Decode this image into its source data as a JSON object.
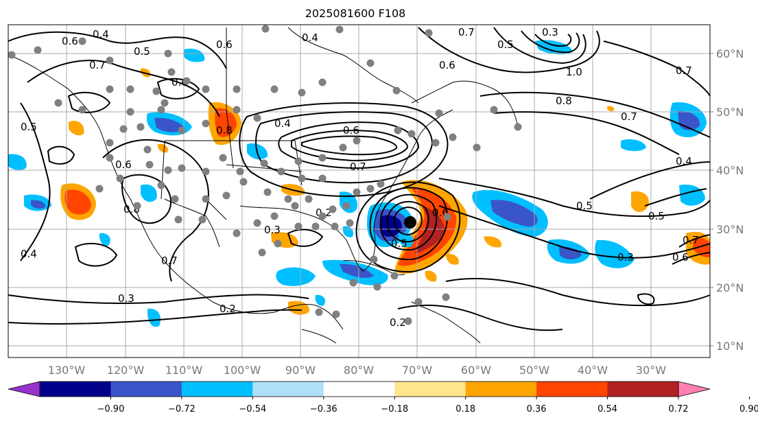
{
  "title": "2025081600 F108",
  "lat_labels": [
    "60°N",
    "50°N",
    "40°N",
    "30°N",
    "20°N",
    "10°N"
  ],
  "lon_labels": [
    "130°W",
    "120°W",
    "110°W",
    "100°W",
    "90°W",
    "80°W",
    "70°W",
    "60°W",
    "50°W",
    "40°W",
    "30°W"
  ],
  "colorbar": {
    "tick_labels": [
      "−0.90",
      "−0.72",
      "−0.54",
      "−0.36",
      "−0.18",
      "0.18",
      "0.36",
      "0.54",
      "0.72",
      "0.90"
    ],
    "colors": [
      "#9932cc",
      "#00008b",
      "#3a55c8",
      "#00bfff",
      "#b0e0f8",
      "#ffffff",
      "#ffe68c",
      "#ffa500",
      "#ff4500",
      "#b22222",
      "#ff80b0"
    ]
  },
  "contour_labels": [
    "0.4",
    "0.6",
    "0.5",
    "0.6",
    "0.7",
    "0.6",
    "0.4",
    "0.3",
    "0.7",
    "0.5",
    "0.6",
    "1.0",
    "0.8",
    "0.7",
    "0.7",
    "0.5",
    "0.6",
    "0.4",
    "0.8",
    "0.6",
    "0.7",
    "0.7",
    "0.6",
    "0.8",
    "0.3",
    "0.5",
    "0.5",
    "0.3",
    "0.4",
    "0.5",
    "0.7",
    "0.6",
    "0.4",
    "0.3",
    "0.2",
    "0.2",
    "0.2"
  ]
}
